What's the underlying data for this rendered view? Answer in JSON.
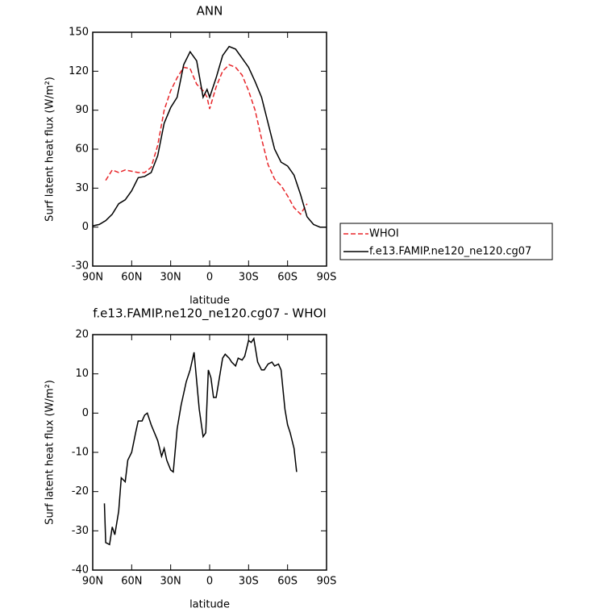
{
  "chart_data": [
    {
      "type": "line",
      "title": "ANN",
      "xlabel": "latitude",
      "ylabel": "Surf latent heat flux (W/m²)",
      "x": [
        90,
        85,
        80,
        75,
        70,
        65,
        60,
        55,
        50,
        45,
        40,
        35,
        30,
        25,
        20,
        15,
        10,
        5,
        2,
        0,
        -5,
        -10,
        -15,
        -20,
        -25,
        -30,
        -35,
        -40,
        -45,
        -50,
        -55,
        -60,
        -65,
        -70,
        -75,
        -80,
        -85,
        -90
      ],
      "series": [
        {
          "name": "WHOI",
          "color": "#e8262a",
          "line_style": "dashed",
          "values": [
            null,
            null,
            36,
            44,
            42,
            44,
            43,
            42,
            42,
            46,
            63,
            90,
            105,
            115,
            123,
            122,
            110,
            105,
            100,
            91,
            108,
            120,
            125,
            123,
            117,
            105,
            90,
            68,
            48,
            37,
            32,
            24,
            15,
            10,
            18,
            null,
            null,
            null
          ]
        },
        {
          "name": "f.e13.FAMIP.ne120_ne120.cg07",
          "color": "#000000",
          "line_style": "solid",
          "values": [
            1,
            2,
            5,
            10,
            18,
            21,
            28,
            38,
            39,
            42,
            55,
            80,
            92,
            100,
            125,
            135,
            128,
            100,
            106,
            100,
            115,
            132,
            139,
            137,
            130,
            123,
            112,
            100,
            80,
            60,
            50,
            47,
            40,
            25,
            8,
            2,
            0,
            0
          ]
        }
      ],
      "xlim": [
        90,
        -90
      ],
      "ylim": [
        -30,
        150
      ],
      "xticks": [
        {
          "value": 90,
          "label": "90N"
        },
        {
          "value": 60,
          "label": "60N"
        },
        {
          "value": 30,
          "label": "30N"
        },
        0,
        {
          "value": -30,
          "label": "30S"
        },
        {
          "value": -60,
          "label": "60S"
        },
        {
          "value": -90,
          "label": "90S"
        }
      ],
      "yticks": [
        -30,
        0,
        30,
        60,
        90,
        120,
        150
      ],
      "legend": "right"
    },
    {
      "type": "line",
      "title": "f.e13.FAMIP.ne120_ne120.cg07 - WHOI",
      "xlabel": "latitude",
      "ylabel": "Surf latent heat flux (W/m²)",
      "x": [
        81,
        80,
        77,
        75,
        73,
        70,
        68,
        65,
        63,
        60,
        57,
        55,
        52,
        50,
        48,
        45,
        40,
        37,
        35,
        33,
        30,
        28,
        25,
        22,
        18,
        15,
        12,
        8,
        5,
        3,
        1,
        -1,
        -3,
        -5,
        -8,
        -10,
        -12,
        -15,
        -17,
        -20,
        -22,
        -25,
        -27,
        -30,
        -32,
        -34,
        -35,
        -37,
        -40,
        -42,
        -45,
        -48,
        -50,
        -53,
        -55,
        -58,
        -60,
        -62,
        -65,
        -67
      ],
      "series": [
        {
          "color": "#000000",
          "line_style": "solid",
          "values": [
            -23,
            -33,
            -33.5,
            -29,
            -31,
            -25,
            -16.5,
            -17.5,
            -12,
            -10,
            -5,
            -2,
            -2,
            -0.5,
            0,
            -3,
            -7,
            -11,
            -9,
            -12,
            -14.5,
            -15,
            -4,
            2,
            8,
            11,
            15.5,
            1,
            -6,
            -5,
            11,
            9,
            4,
            4,
            10,
            14,
            15,
            14,
            13,
            12,
            14,
            13.5,
            14.5,
            18.5,
            18,
            19,
            17,
            13,
            11,
            11,
            12.5,
            13,
            12,
            12.5,
            11,
            1,
            -3,
            -5,
            -9,
            -15
          ]
        }
      ],
      "xlim": [
        90,
        -90
      ],
      "ylim": [
        -40,
        20
      ],
      "xticks": [
        {
          "value": 90,
          "label": "90N"
        },
        {
          "value": 60,
          "label": "60N"
        },
        {
          "value": 30,
          "label": "30N"
        },
        0,
        {
          "value": -30,
          "label": "30S"
        },
        {
          "value": -60,
          "label": "60S"
        },
        {
          "value": -90,
          "label": "90S"
        }
      ],
      "yticks": [
        -40,
        -30,
        -20,
        -10,
        0,
        10,
        20
      ]
    }
  ]
}
